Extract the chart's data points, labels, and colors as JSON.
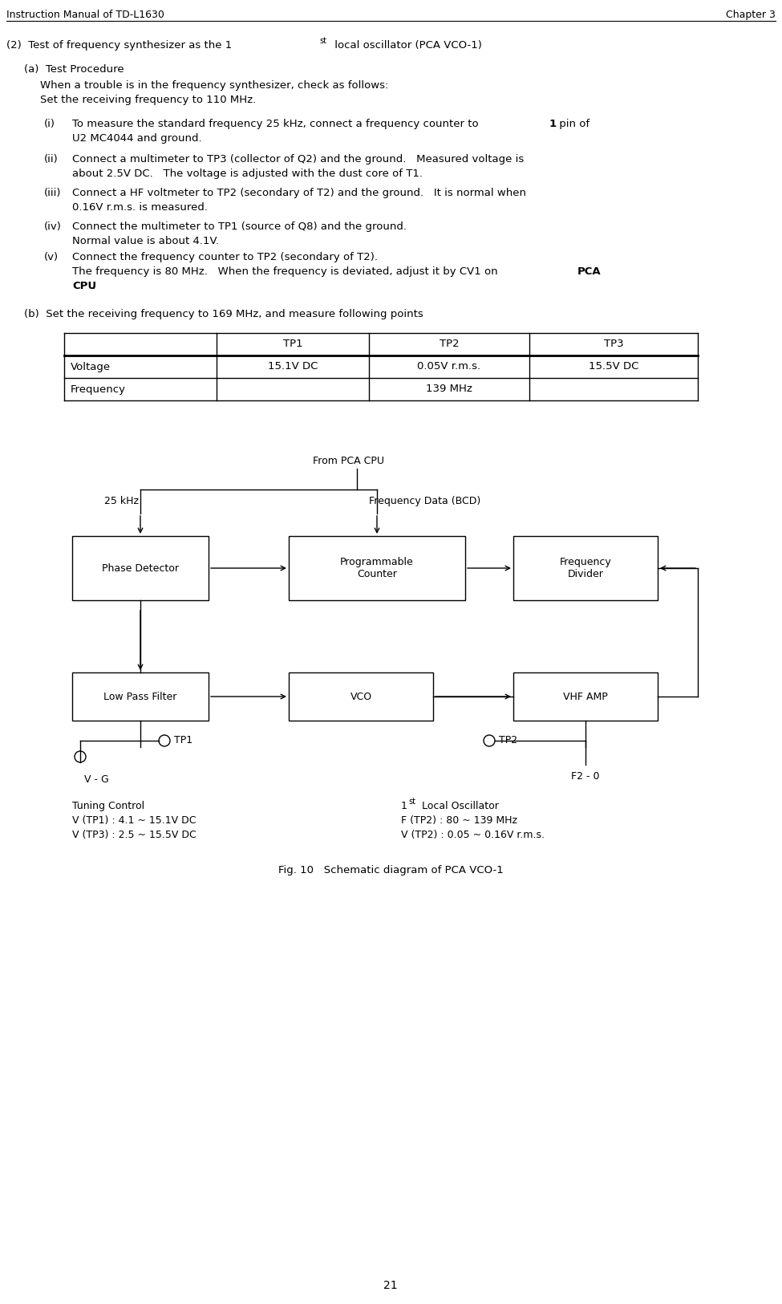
{
  "header_left": "Instruction Manual of TD-L1630",
  "header_right": "Chapter 3",
  "title_2": "(2)  Test of frequency synthesizer as the 1",
  "title_2_sup": "st",
  "title_2_rest": " local oscillator (PCA VCO-1)",
  "section_a_title": "(a)  Test Procedure",
  "section_a_intro": "When a trouble is in the frequency synthesizer, check as follows:\nSet the receiving frequency to 110 MHz.",
  "items": [
    {
      "num": "(i)",
      "text": "To measure the standard frequency 25 kHz, connect a frequency counter to \\textbf{1} pin of\nU2 MC4044 and ground."
    },
    {
      "num": "(ii)",
      "text": "Connect a multimeter to TP3 (collector of Q2) and the ground.   Measured voltage is\nabout 2.5V DC.   The voltage is adjusted with the dust core of T1."
    },
    {
      "num": "(iii)",
      "text": "Connect a HF voltmeter to TP2 (secondary of T2) and the ground.   It is normal when\n0.16V r.m.s. is measured."
    },
    {
      "num": "(iv)",
      "text": "Connect the multimeter to TP1 (source of Q8) and the ground.\nNormal value is about 4.1V."
    },
    {
      "num": "(v)",
      "text": "Connect the frequency counter to TP2 (secondary of T2).\nThe frequency is 80 MHz.   When the frequency is deviated, adjust it by CV1 on \\textbf{PCA\nCPU}."
    }
  ],
  "section_b_title": "(b)  Set the receiving frequency to 169 MHz, and measure following points",
  "table_headers": [
    "",
    "TP1",
    "TP2",
    "TP3"
  ],
  "table_row1": [
    "Voltage",
    "15.1V DC",
    "0.05V r.m.s.",
    "15.5V DC"
  ],
  "table_row2": [
    "Frequency",
    "",
    "139 MHz",
    ""
  ],
  "fig_caption": "Fig. 10   Schematic diagram of PCA VCO-1",
  "page_num": "21",
  "diagram": {
    "from_pca_cpu": "From PCA CPU",
    "label_25khz": "25 kHz",
    "label_freq_data": "Frequency Data (BCD)",
    "box_phase": "Phase Detector",
    "box_prog": "Programmable\nCounter",
    "box_freq_div": "Frequency\nDivider",
    "box_lpf": "Low Pass Filter",
    "box_vco": "VCO",
    "box_vhf": "VHF AMP",
    "label_tp1": "TP1",
    "label_tp2": "TP2",
    "label_vg": "V - G",
    "label_f2": "F2 - 0",
    "tuning_line1": "Tuning Control",
    "tuning_line2": "V (TP1) : 4.1 ~ 15.1V DC",
    "tuning_line3": "V (TP3) : 2.5 ~ 15.5V DC",
    "osc_line1": "1",
    "osc_line1_sup": "st",
    "osc_line1_rest": " Local Oscillator",
    "osc_line2": "F (TP2) : 80 ~ 139 MHz",
    "osc_line3": "V (TP2) : 0.05 ~ 0.16V r.m.s."
  }
}
